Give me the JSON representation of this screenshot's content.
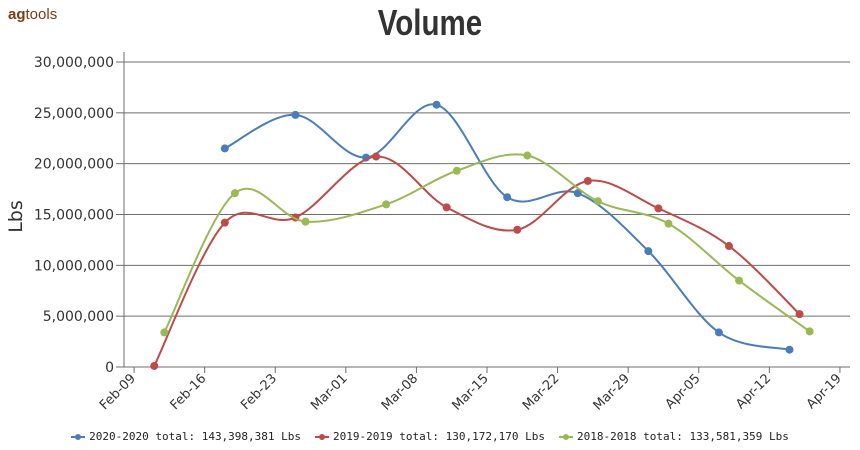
{
  "logo": {
    "bold": "ag",
    "rest": "tools"
  },
  "chart_data": {
    "type": "line",
    "title": "Volume",
    "ylabel": "Lbs",
    "xlabel": "",
    "ylim": [
      0,
      30000000
    ],
    "yticks": [
      0,
      5000000,
      10000000,
      15000000,
      20000000,
      25000000,
      30000000
    ],
    "ytick_labels": [
      "0",
      "5,000,000",
      "10,000,000",
      "15,000,000",
      "20,000,000",
      "25,000,000",
      "30,000,000"
    ],
    "x_axis": {
      "type": "date",
      "range": [
        "2020-02-08",
        "2020-04-20"
      ]
    },
    "xticks": [
      "2020-02-09",
      "2020-02-16",
      "2020-02-23",
      "2020-03-01",
      "2020-03-08",
      "2020-03-15",
      "2020-03-22",
      "2020-03-29",
      "2020-04-05",
      "2020-04-12",
      "2020-04-19"
    ],
    "xtick_labels": [
      "Feb-09",
      "Feb-16",
      "Feb-23",
      "Mar-01",
      "Mar-08",
      "Mar-15",
      "Mar-22",
      "Mar-29",
      "Apr-05",
      "Apr-12",
      "Apr-19"
    ],
    "grid": "horizontal",
    "legend_position": "bottom",
    "series": [
      {
        "name": "2020-2020 total: 143,398,381 Lbs",
        "color": "#4a7ebb",
        "x": [
          "2020-02-18",
          "2020-02-25",
          "2020-03-03",
          "2020-03-10",
          "2020-03-17",
          "2020-03-24",
          "2020-03-31",
          "2020-04-07",
          "2020-04-14"
        ],
        "y": [
          21500000,
          24800000,
          20600000,
          25800000,
          16700000,
          17100000,
          11400000,
          3400000,
          1700000
        ]
      },
      {
        "name": "2019-2019 total: 130,172,170 Lbs",
        "color": "#be4b48",
        "x": [
          "2020-02-11",
          "2020-02-18",
          "2020-02-25",
          "2020-03-04",
          "2020-03-11",
          "2020-03-18",
          "2020-03-25",
          "2020-04-01",
          "2020-04-08",
          "2020-04-15"
        ],
        "y": [
          100000,
          14200000,
          14700000,
          20700000,
          15700000,
          13500000,
          18300000,
          15600000,
          11900000,
          5200000
        ]
      },
      {
        "name": "2018-2018 total: 133,581,359 Lbs",
        "color": "#98b954",
        "x": [
          "2020-02-12",
          "2020-02-19",
          "2020-02-26",
          "2020-03-05",
          "2020-03-12",
          "2020-03-19",
          "2020-03-26",
          "2020-04-02",
          "2020-04-09",
          "2020-04-16"
        ],
        "y": [
          3400000,
          17100000,
          14300000,
          16000000,
          19300000,
          20800000,
          16300000,
          14100000,
          8500000,
          3500000
        ]
      }
    ]
  }
}
